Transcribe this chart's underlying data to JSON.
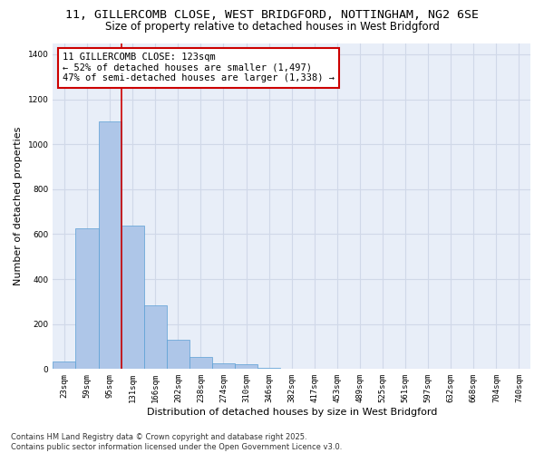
{
  "title_line1": "11, GILLERCOMB CLOSE, WEST BRIDGFORD, NOTTINGHAM, NG2 6SE",
  "title_line2": "Size of property relative to detached houses in West Bridgford",
  "xlabel": "Distribution of detached houses by size in West Bridgford",
  "ylabel": "Number of detached properties",
  "categories": [
    "23sqm",
    "59sqm",
    "95sqm",
    "131sqm",
    "166sqm",
    "202sqm",
    "238sqm",
    "274sqm",
    "310sqm",
    "346sqm",
    "382sqm",
    "417sqm",
    "453sqm",
    "489sqm",
    "525sqm",
    "561sqm",
    "597sqm",
    "632sqm",
    "668sqm",
    "704sqm",
    "740sqm"
  ],
  "values": [
    35,
    625,
    1100,
    640,
    285,
    130,
    55,
    25,
    20,
    5,
    0,
    0,
    0,
    0,
    0,
    0,
    0,
    0,
    0,
    0,
    0
  ],
  "bar_color": "#aec6e8",
  "bar_edge_color": "#5a9fd4",
  "vline_x": 2.5,
  "vline_color": "#cc0000",
  "annotation_text": "11 GILLERCOMB CLOSE: 123sqm\n← 52% of detached houses are smaller (1,497)\n47% of semi-detached houses are larger (1,338) →",
  "annotation_box_color": "#cc0000",
  "ylim": [
    0,
    1450
  ],
  "yticks": [
    0,
    200,
    400,
    600,
    800,
    1000,
    1200,
    1400
  ],
  "grid_color": "#d0d8e8",
  "bg_color": "#e8eef8",
  "footer_line1": "Contains HM Land Registry data © Crown copyright and database right 2025.",
  "footer_line2": "Contains public sector information licensed under the Open Government Licence v3.0.",
  "title_fontsize": 9.5,
  "subtitle_fontsize": 8.5,
  "axis_label_fontsize": 8,
  "tick_fontsize": 6.5,
  "annotation_fontsize": 7.5,
  "footer_fontsize": 6
}
